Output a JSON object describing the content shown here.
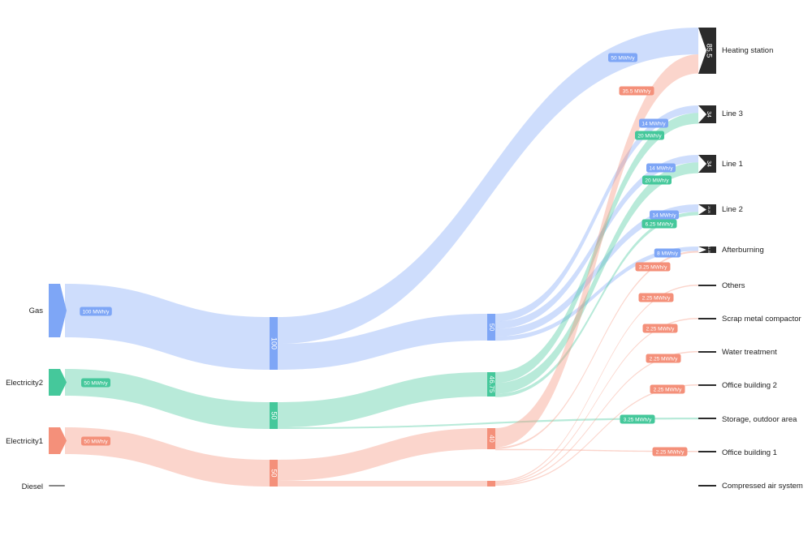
{
  "chart_data": {
    "type": "sankey",
    "unit": "MWh/y",
    "colors": {
      "gas": "#7ea6f6",
      "electricity2": "#45c89b",
      "electricity1": "#f4907a",
      "diesel": "#888888",
      "sink": "#2b2b2b"
    },
    "sources": [
      {
        "id": "gas",
        "label": "Gas",
        "value": 100,
        "flow_label": "100 MWh/y"
      },
      {
        "id": "electricity2",
        "label": "Electricity2",
        "value": 50,
        "flow_label": "50 MWh/y"
      },
      {
        "id": "electricity1",
        "label": "Electricity1",
        "value": 50,
        "flow_label": "50 MWh/y"
      },
      {
        "id": "diesel",
        "label": "Diesel",
        "value": 0
      }
    ],
    "stage1": [
      {
        "id": "gas",
        "value_label": "100"
      },
      {
        "id": "electricity2",
        "value_label": "50"
      },
      {
        "id": "electricity1",
        "value_label": "50"
      }
    ],
    "stage2": [
      {
        "id": "gas",
        "value": 50,
        "value_label": "50"
      },
      {
        "id": "electricity2",
        "value": 46.75,
        "value_label": "46.75"
      },
      {
        "id": "electricity1",
        "value": 40,
        "value_label": "40"
      },
      {
        "id": "electricity1b",
        "value": 7.5,
        "value_label": ""
      }
    ],
    "targets": [
      {
        "id": "heating",
        "label": "Heating station",
        "value": 85.5,
        "value_label": "85.5"
      },
      {
        "id": "line3",
        "label": "Line 3",
        "value": 34,
        "value_label": "34"
      },
      {
        "id": "line1",
        "label": "Line 1",
        "value": 34,
        "value_label": "34"
      },
      {
        "id": "line2",
        "label": "Line 2",
        "value": 20.25,
        "value_label": "20.25"
      },
      {
        "id": "afterburning",
        "label": "Afterburning",
        "value": 11.25,
        "value_label": "11.25"
      },
      {
        "id": "others",
        "label": "Others",
        "value": 2.25,
        "value_label": ""
      },
      {
        "id": "scrap",
        "label": "Scrap metal compactor",
        "value": 2.25,
        "value_label": ""
      },
      {
        "id": "water",
        "label": "Water treatment",
        "value": 2.25,
        "value_label": ""
      },
      {
        "id": "office2",
        "label": "Office building 2",
        "value": 2.25,
        "value_label": ""
      },
      {
        "id": "storage",
        "label": "Storage, outdoor area",
        "value": 3.25,
        "value_label": ""
      },
      {
        "id": "office1",
        "label": "Office building 1",
        "value": 2.25,
        "value_label": ""
      },
      {
        "id": "compressed",
        "label": "Compressed air system",
        "value": 0,
        "value_label": ""
      }
    ],
    "flows": [
      {
        "from": "gas",
        "to": "heating",
        "value": 50,
        "label": "50 MWh/y"
      },
      {
        "from": "electricity1",
        "to": "heating",
        "value": 35.5,
        "label": "35.5 MWh/y"
      },
      {
        "from": "gas",
        "to": "line3",
        "value": 14,
        "label": "14 MWh/y"
      },
      {
        "from": "electricity2",
        "to": "line3",
        "value": 20,
        "label": "20 MWh/y"
      },
      {
        "from": "gas",
        "to": "line1",
        "value": 14,
        "label": "14 MWh/y"
      },
      {
        "from": "electricity2",
        "to": "line1",
        "value": 20,
        "label": "20 MWh/y"
      },
      {
        "from": "gas",
        "to": "line2",
        "value": 14,
        "label": "14 MWh/y"
      },
      {
        "from": "electricity2",
        "to": "line2",
        "value": 6.25,
        "label": "6.25 MWh/y"
      },
      {
        "from": "gas",
        "to": "afterburning",
        "value": 8,
        "label": "8 MWh/y"
      },
      {
        "from": "electricity1",
        "to": "afterburning",
        "value": 3.25,
        "label": "3.25 MWh/y"
      },
      {
        "from": "electricity1",
        "to": "others",
        "value": 2.25,
        "label": "2.25 MWh/y"
      },
      {
        "from": "electricity1",
        "to": "scrap",
        "value": 2.25,
        "label": "2.25 MWh/y"
      },
      {
        "from": "electricity1",
        "to": "water",
        "value": 2.25,
        "label": "2.25 MWh/y"
      },
      {
        "from": "electricity1",
        "to": "office2",
        "value": 2.25,
        "label": "2.25 MWh/y"
      },
      {
        "from": "electricity2",
        "to": "storage",
        "value": 3.25,
        "label": "3.25 MWh/y"
      },
      {
        "from": "electricity1",
        "to": "office1",
        "value": 2.25,
        "label": "2.25 MWh/y"
      }
    ]
  }
}
